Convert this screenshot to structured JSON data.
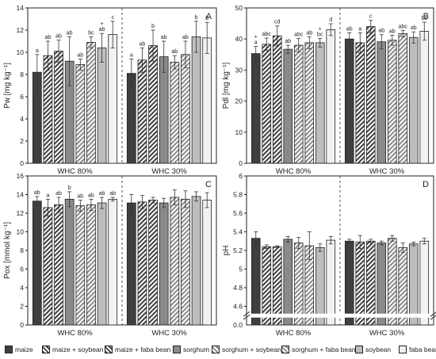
{
  "groups": [
    "WHC 80%",
    "WHC 30%"
  ],
  "legend": [
    {
      "label": "maize",
      "color": "#3f3f3f",
      "hatch": false
    },
    {
      "label": "maize + soybean",
      "color": "#3f3f3f",
      "hatch": true
    },
    {
      "label": "maize + faba bean",
      "color": "#3f3f3f",
      "hatch": true
    },
    {
      "label": "sorghum",
      "color": "#8a8a8a",
      "hatch": false
    },
    {
      "label": "sorghum + soybean",
      "color": "#8a8a8a",
      "hatch": true
    },
    {
      "label": "sorghum + faba bean",
      "color": "#8a8a8a",
      "hatch": true
    },
    {
      "label": "soybean",
      "color": "#bdbdbd",
      "hatch": false
    },
    {
      "label": "faba bean",
      "color": "#f2f2f2",
      "hatch": false
    }
  ],
  "chart_data": [
    {
      "panel": "A",
      "type": "bar",
      "ylabel": "Pw [mg kg⁻¹]",
      "ylim": [
        0,
        14
      ],
      "yticks": [
        0,
        2,
        4,
        6,
        8,
        10,
        12,
        14
      ],
      "categories": [
        "WHC 80%",
        "WHC 30%"
      ],
      "series": [
        {
          "name": "maize",
          "values": [
            8.2,
            8.1
          ],
          "errors": [
            1.6,
            1.3
          ]
        },
        {
          "name": "maize + soybean",
          "values": [
            9.7,
            9.3
          ],
          "errors": [
            1.3,
            1.1
          ]
        },
        {
          "name": "maize + faba bean",
          "values": [
            10.1,
            10.6
          ],
          "errors": [
            1.0,
            1.4
          ]
        },
        {
          "name": "sorghum",
          "values": [
            9.2,
            9.6
          ],
          "errors": [
            2.2,
            1.4
          ]
        },
        {
          "name": "sorghum + soybean",
          "values": [
            8.9,
            9.1
          ],
          "errors": [
            0.5,
            0.6
          ]
        },
        {
          "name": "sorghum + faba bean",
          "values": [
            10.9,
            9.8
          ],
          "errors": [
            0.5,
            1.2
          ]
        },
        {
          "name": "soybean",
          "values": [
            10.4,
            11.4
          ],
          "errors": [
            1.3,
            1.4
          ]
        },
        {
          "name": "faba bean",
          "values": [
            11.6,
            11.3
          ],
          "errors": [
            1.2,
            1.4
          ]
        }
      ],
      "annotations": [
        [
          "a",
          "ab",
          "ab",
          "ab",
          "ab",
          "bc",
          "+\nab",
          "c"
        ],
        [
          "a",
          "ab",
          "b",
          "ab",
          "ab",
          "ab",
          "b",
          "b"
        ]
      ]
    },
    {
      "panel": "B",
      "type": "bar",
      "ylabel": "Pdl [mg kg⁻¹]",
      "ylim": [
        0,
        50
      ],
      "yticks": [
        0,
        10,
        20,
        30,
        40,
        50
      ],
      "categories": [
        "WHC 80%",
        "WHC 30%"
      ],
      "series": [
        {
          "name": "maize",
          "values": [
            35.3,
            40.0
          ],
          "errors": [
            2.3,
            2.0
          ]
        },
        {
          "name": "maize + soybean",
          "values": [
            38.3,
            38.8
          ],
          "errors": [
            2.0,
            3.2
          ]
        },
        {
          "name": "maize + faba bean",
          "values": [
            41.0,
            44.0
          ],
          "errors": [
            3.2,
            2.0
          ]
        },
        {
          "name": "sorghum",
          "values": [
            36.7,
            39.1
          ],
          "errors": [
            1.3,
            2.3
          ]
        },
        {
          "name": "sorghum + soybean",
          "values": [
            38.0,
            39.6
          ],
          "errors": [
            2.2,
            1.6
          ]
        },
        {
          "name": "sorghum + faba bean",
          "values": [
            38.8,
            41.7
          ],
          "errors": [
            1.9,
            1.0
          ]
        },
        {
          "name": "soybean",
          "values": [
            38.8,
            40.5
          ],
          "errors": [
            1.4,
            1.8
          ]
        },
        {
          "name": "faba bean",
          "values": [
            43.0,
            42.5
          ],
          "errors": [
            1.9,
            2.9
          ]
        }
      ],
      "annotations": [
        [
          "+\na",
          "abc",
          "cd",
          "ab",
          "abc",
          "ab",
          "+\nbc",
          "d"
        ],
        [
          "ab",
          "a",
          "c",
          "ab",
          "ab",
          "abc",
          "ab",
          "bc"
        ]
      ]
    },
    {
      "panel": "C",
      "type": "bar",
      "ylabel": "Pox [mmol kg⁻¹]",
      "ylim": [
        0,
        16
      ],
      "yticks": [
        0,
        2,
        4,
        6,
        8,
        10,
        12,
        14,
        16
      ],
      "categories": [
        "WHC 80%",
        "WHC 30%"
      ],
      "series": [
        {
          "name": "maize",
          "values": [
            13.3,
            13.1
          ],
          "errors": [
            0.5,
            0.9
          ]
        },
        {
          "name": "maize + soybean",
          "values": [
            12.6,
            13.2
          ],
          "errors": [
            0.9,
            0.7
          ]
        },
        {
          "name": "maize + faba bean",
          "values": [
            12.9,
            13.4
          ],
          "errors": [
            0.8,
            0.3
          ]
        },
        {
          "name": "sorghum",
          "values": [
            13.5,
            13.1
          ],
          "errors": [
            0.8,
            0.5
          ]
        },
        {
          "name": "sorghum + soybean",
          "values": [
            12.8,
            13.7
          ],
          "errors": [
            0.6,
            0.8
          ]
        },
        {
          "name": "sorghum + faba bean",
          "values": [
            12.9,
            13.5
          ],
          "errors": [
            0.6,
            0.9
          ]
        },
        {
          "name": "soybean",
          "values": [
            13.1,
            13.8
          ],
          "errors": [
            0.6,
            0.5
          ]
        },
        {
          "name": "faba bean",
          "values": [
            13.5,
            13.4
          ],
          "errors": [
            0.2,
            0.8
          ]
        }
      ],
      "annotations": [
        [
          "ab",
          "a",
          "ab",
          "b",
          "ab",
          "ab",
          "ab",
          "ab"
        ],
        [
          "",
          "",
          "",
          "",
          "",
          "",
          "",
          ""
        ]
      ]
    },
    {
      "panel": "D",
      "type": "bar",
      "ylabel": "pH",
      "ylim": [
        4.4,
        6.0
      ],
      "yticks": [
        4.6,
        4.8,
        5.0,
        5.2,
        5.4,
        5.6,
        5.8,
        6.0
      ],
      "axis_break": true,
      "categories": [
        "WHC 80%",
        "WHC 30%"
      ],
      "series": [
        {
          "name": "maize",
          "values": [
            5.33,
            5.3
          ],
          "errors": [
            0.07,
            0.02
          ]
        },
        {
          "name": "maize + soybean",
          "values": [
            5.24,
            5.29
          ],
          "errors": [
            0.02,
            0.07
          ]
        },
        {
          "name": "maize + faba bean",
          "values": [
            5.24,
            5.3
          ],
          "errors": [
            0.01,
            0.02
          ]
        },
        {
          "name": "sorghum",
          "values": [
            5.32,
            5.28
          ],
          "errors": [
            0.03,
            0.02
          ]
        },
        {
          "name": "sorghum + soybean",
          "values": [
            5.28,
            5.33
          ],
          "errors": [
            0.06,
            0.03
          ]
        },
        {
          "name": "sorghum + faba bean",
          "values": [
            5.25,
            5.23
          ],
          "errors": [
            0.15,
            0.05
          ]
        },
        {
          "name": "soybean",
          "values": [
            5.23,
            5.27
          ],
          "errors": [
            0.04,
            0.02
          ]
        },
        {
          "name": "faba bean",
          "values": [
            5.31,
            5.3
          ],
          "errors": [
            0.04,
            0.03
          ]
        }
      ],
      "annotations": [
        [
          "",
          "",
          "",
          "",
          "",
          "",
          "",
          ""
        ],
        [
          "",
          "",
          "",
          "",
          "",
          "",
          "",
          ""
        ]
      ]
    }
  ]
}
